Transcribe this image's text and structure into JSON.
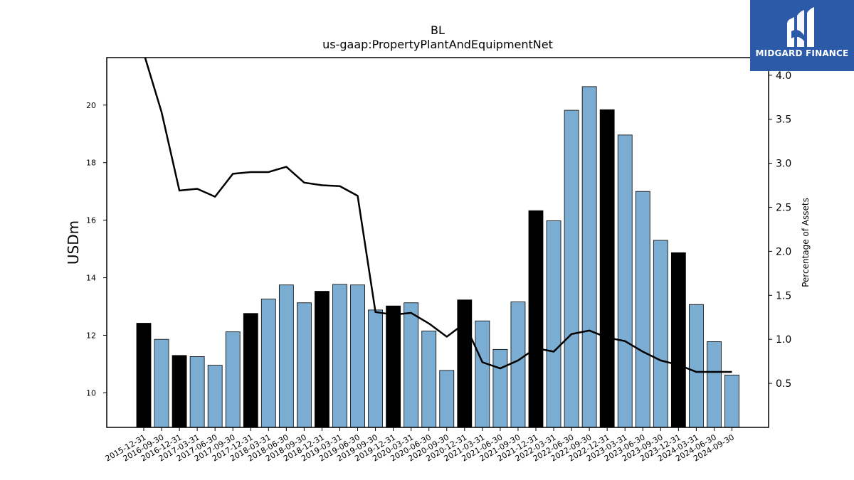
{
  "chart_data": {
    "type": "bar",
    "title": "BL",
    "subtitle": "us-gaap:PropertyPlantAndEquipmentNet",
    "ylabel": "USDm",
    "y2label": "Percentage of Assets",
    "ylim": [
      8.8,
      21.65
    ],
    "y2lim": [
      0.0,
      4.2
    ],
    "yticks": [
      10,
      12,
      14,
      16,
      18,
      20
    ],
    "y2ticks": [
      0.5,
      1.0,
      1.5,
      2.0,
      2.5,
      3.0,
      3.5,
      4.0
    ],
    "categories": [
      "2015-12-31",
      "2016-09-30",
      "2016-12-31",
      "2017-03-31",
      "2017-06-30",
      "2017-09-30",
      "2017-12-31",
      "2018-03-31",
      "2018-06-30",
      "2018-09-30",
      "2018-12-31",
      "2019-03-31",
      "2019-06-30",
      "2019-09-30",
      "2019-12-31",
      "2020-03-31",
      "2020-06-30",
      "2020-09-30",
      "2020-12-31",
      "2021-03-31",
      "2021-06-30",
      "2021-09-30",
      "2021-12-31",
      "2022-03-31",
      "2022-06-30",
      "2022-09-30",
      "2022-12-31",
      "2023-03-31",
      "2023-06-30",
      "2023-09-30",
      "2023-12-31",
      "2024-03-31",
      "2024-06-30",
      "2024-09-30"
    ],
    "series": [
      {
        "kind": "bar",
        "values": [
          12.42,
          11.86,
          11.3,
          11.26,
          10.96,
          12.12,
          12.76,
          13.26,
          13.75,
          13.13,
          13.53,
          13.77,
          13.75,
          12.88,
          13.02,
          13.13,
          12.15,
          10.78,
          13.23,
          12.5,
          11.51,
          13.16,
          16.33,
          15.98,
          19.82,
          20.64,
          19.84,
          18.96,
          17.0,
          15.3,
          14.87,
          13.07,
          11.78,
          10.62
        ],
        "annual_color": "#000000",
        "quarter_color": "#7bacd2"
      },
      {
        "kind": "line",
        "axis": "right",
        "color": "#000000",
        "values": [
          4.25,
          3.58,
          2.69,
          2.71,
          2.62,
          2.88,
          2.9,
          2.9,
          2.96,
          2.78,
          2.75,
          2.74,
          2.63,
          1.31,
          1.28,
          1.3,
          1.18,
          1.03,
          1.18,
          0.74,
          0.67,
          0.76,
          0.9,
          0.86,
          1.06,
          1.1,
          1.02,
          0.98,
          0.86,
          0.76,
          0.71,
          0.63,
          0.63,
          0.63
        ]
      }
    ],
    "annual_flags": [
      true,
      false,
      true,
      false,
      false,
      false,
      true,
      false,
      false,
      false,
      true,
      false,
      false,
      false,
      true,
      false,
      false,
      false,
      true,
      false,
      false,
      false,
      true,
      false,
      false,
      false,
      true,
      false,
      false,
      false,
      true,
      false,
      false,
      false
    ]
  },
  "logo": {
    "text": "MIDGARD FINANCE",
    "color": "#2b5aa8"
  }
}
